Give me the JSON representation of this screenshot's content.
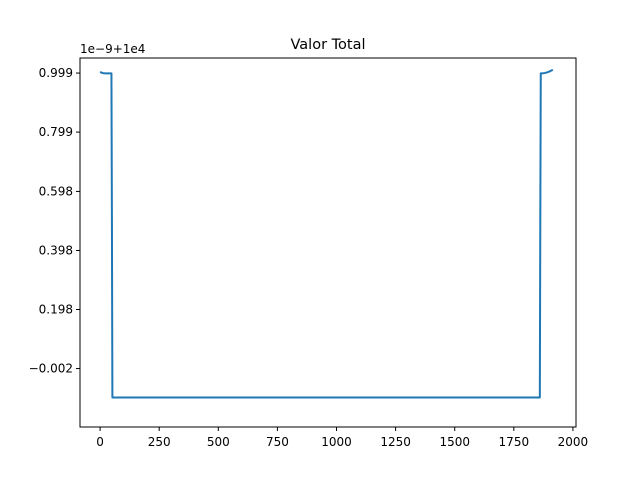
{
  "chart_data": {
    "type": "line",
    "title": "Valor Total",
    "xlabel": "",
    "ylabel": "",
    "offset_label": "1e−9+1e4",
    "xlim": [
      -85,
      2013
    ],
    "ylim": [
      -0.2,
      1.05
    ],
    "x_ticks": [
      {
        "value": 0,
        "label": "0"
      },
      {
        "value": 250,
        "label": "250"
      },
      {
        "value": 500,
        "label": "500"
      },
      {
        "value": 750,
        "label": "750"
      },
      {
        "value": 1000,
        "label": "1000"
      },
      {
        "value": 1250,
        "label": "1250"
      },
      {
        "value": 1500,
        "label": "1500"
      },
      {
        "value": 1750,
        "label": "1750"
      },
      {
        "value": 2000,
        "label": "2000"
      }
    ],
    "y_ticks": [
      {
        "value": -0.002,
        "label": "−0.002"
      },
      {
        "value": 0.198,
        "label": "0.198"
      },
      {
        "value": 0.398,
        "label": "0.398"
      },
      {
        "value": 0.598,
        "label": "0.598"
      },
      {
        "value": 0.799,
        "label": "0.799"
      },
      {
        "value": 0.999,
        "label": "0.999"
      }
    ],
    "grid": false,
    "colors": {
      "line": "#1f77b4",
      "axes": "#000000"
    },
    "series": [
      {
        "x": [
          0,
          10,
          20,
          30,
          40,
          48,
          50,
          52,
          1860,
          1862,
          1864,
          1870,
          1880,
          1890,
          1900,
          1910,
          1915
        ],
        "y": [
          1.003,
          0.999,
          0.998,
          0.998,
          0.998,
          0.998,
          0.5,
          -0.1,
          -0.1,
          0.5,
          0.998,
          0.998,
          0.999,
          1.001,
          1.004,
          1.008,
          1.01
        ]
      }
    ]
  }
}
